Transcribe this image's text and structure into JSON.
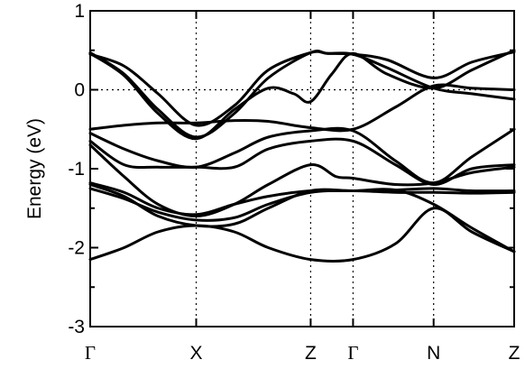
{
  "chart_data": {
    "type": "line",
    "title": "",
    "ylabel": "Energy (eV)",
    "xlabel": "",
    "ylim": [
      -3,
      1
    ],
    "xlim": [
      0,
      5
    ],
    "yticks": [
      "1",
      "0",
      "-1",
      "-2",
      "-3"
    ],
    "ytick_values": [
      1,
      0,
      -1,
      -2,
      -3
    ],
    "kpoints": [
      {
        "label": "Γ",
        "x": 0
      },
      {
        "label": "X",
        "x": 1.25
      },
      {
        "label": "Z",
        "x": 2.6
      },
      {
        "label": "Γ",
        "x": 3.1
      },
      {
        "label": "N",
        "x": 4.05
      },
      {
        "label": "Z",
        "x": 5
      }
    ],
    "grid": "dotted vertical lines at high-symmetry points and dotted horizontal line at 0 eV",
    "fermi_level": 0,
    "series": [
      {
        "x": [
          0,
          0.4,
          0.8,
          1.25,
          1.7,
          2.1,
          2.6,
          2.8,
          3.1,
          3.5,
          4.05,
          4.5,
          5
        ],
        "y": [
          0.45,
          0.3,
          -0.05,
          -0.45,
          -0.2,
          0.25,
          0.47,
          0.46,
          0.45,
          0.28,
          0.02,
          -0.05,
          -0.12
        ]
      },
      {
        "x": [
          0,
          0.4,
          0.8,
          1.25,
          1.7,
          2.1,
          2.6,
          2.8,
          3.1,
          3.5,
          4.05,
          4.5,
          5
        ],
        "y": [
          0.47,
          0.2,
          -0.25,
          -0.6,
          -0.3,
          0.15,
          0.47,
          0.46,
          0.45,
          0.38,
          0.15,
          0.35,
          0.48
        ]
      },
      {
        "x": [
          0,
          0.4,
          0.8,
          1.25,
          1.7,
          2.1,
          2.4,
          2.6,
          2.85,
          3.1,
          3.5,
          4.05,
          4.5,
          5
        ],
        "y": [
          0.46,
          0.18,
          -0.3,
          -0.62,
          -0.25,
          0.02,
          -0.05,
          -0.15,
          0.2,
          0.46,
          0.2,
          0.02,
          0.25,
          0.5
        ]
      },
      {
        "x": [
          0,
          0.4,
          0.8,
          1.25,
          1.7,
          2.1,
          2.6,
          3.1,
          3.6,
          4.05,
          4.5,
          5
        ],
        "y": [
          -0.5,
          -0.45,
          -0.42,
          -0.42,
          -0.39,
          -0.4,
          -0.48,
          -0.5,
          -0.22,
          0.05,
          0.02,
          0.0
        ]
      },
      {
        "x": [
          0,
          0.4,
          0.8,
          1.25,
          1.7,
          2.1,
          2.6,
          3.1,
          3.6,
          4.05,
          4.5,
          5
        ],
        "y": [
          -0.55,
          -0.75,
          -0.9,
          -0.98,
          -0.8,
          -0.6,
          -0.52,
          -0.52,
          -0.9,
          -1.18,
          -0.85,
          -0.5
        ]
      },
      {
        "x": [
          0,
          0.4,
          0.8,
          1.25,
          1.7,
          2.1,
          2.6,
          3.1,
          3.6,
          4.05,
          4.5,
          5
        ],
        "y": [
          -0.65,
          -0.95,
          -0.98,
          -0.98,
          -0.98,
          -0.75,
          -0.65,
          -0.65,
          -0.95,
          -1.2,
          -1.0,
          -0.95
        ]
      },
      {
        "x": [
          0,
          0.4,
          0.8,
          1.25,
          1.7,
          2.1,
          2.6,
          2.9,
          3.1,
          3.6,
          4.05,
          4.5,
          5
        ],
        "y": [
          -0.7,
          -1.1,
          -1.45,
          -1.6,
          -1.45,
          -1.2,
          -0.95,
          -1.1,
          -1.12,
          -1.2,
          -1.18,
          -1.05,
          -0.98
        ]
      },
      {
        "x": [
          0,
          0.4,
          0.8,
          1.25,
          1.7,
          2.1,
          2.6,
          3.1,
          3.6,
          4.05,
          4.5,
          5
        ],
        "y": [
          -1.18,
          -1.3,
          -1.5,
          -1.58,
          -1.45,
          -1.35,
          -1.28,
          -1.28,
          -1.27,
          -1.25,
          -1.28,
          -1.28
        ]
      },
      {
        "x": [
          0,
          0.4,
          0.8,
          1.25,
          1.7,
          2.1,
          2.6,
          3.1,
          3.6,
          4.05,
          4.5,
          5
        ],
        "y": [
          -1.25,
          -1.38,
          -1.55,
          -1.65,
          -1.62,
          -1.45,
          -1.3,
          -1.28,
          -1.3,
          -1.3,
          -1.31,
          -1.3
        ]
      },
      {
        "x": [
          0,
          0.4,
          0.8,
          1.25,
          1.7,
          2.1,
          2.6,
          3.1,
          3.6,
          4.05,
          4.5,
          5
        ],
        "y": [
          -2.15,
          -2.0,
          -1.8,
          -1.72,
          -1.8,
          -2.0,
          -2.15,
          -2.15,
          -1.95,
          -1.5,
          -1.8,
          -2.05
        ]
      },
      {
        "x": [
          0,
          0.4,
          0.8,
          1.25,
          1.7,
          2.1,
          2.6,
          3.1,
          3.6,
          4.05,
          4.5,
          5
        ],
        "y": [
          -1.2,
          -1.35,
          -1.6,
          -1.72,
          -1.7,
          -1.5,
          -1.28,
          -1.28,
          -1.27,
          -1.45,
          -1.75,
          -2.05
        ]
      }
    ]
  }
}
